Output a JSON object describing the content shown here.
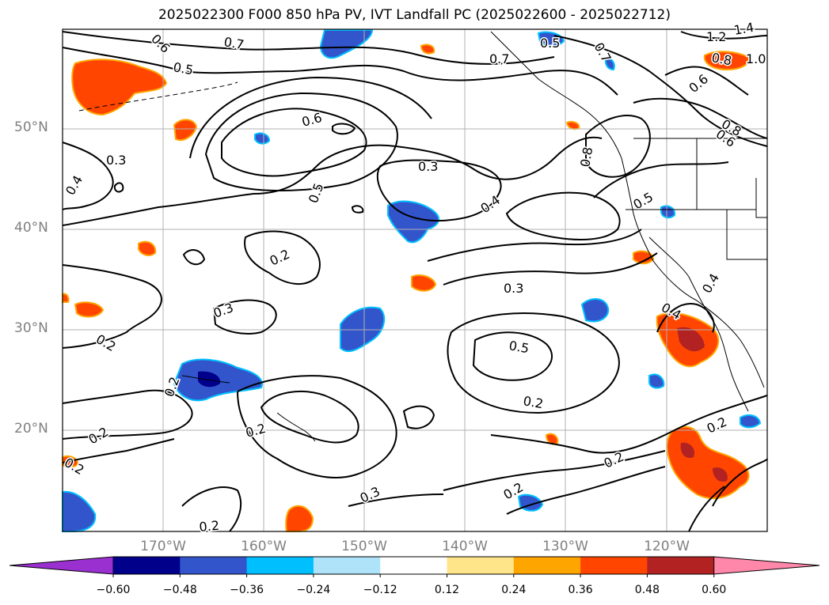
{
  "title": "2025022300 F000 850 hPa PV, IVT Landfall PC (2025022600 - 2025022712)",
  "map": {
    "lat_labels": [
      "50°N",
      "40°N",
      "30°N",
      "20°N"
    ],
    "lon_labels": [
      "170°W",
      "160°W",
      "150°W",
      "140°W",
      "130°W",
      "120°W"
    ]
  },
  "contour_labels": [
    "0.6",
    "0.7",
    "0.5",
    "0.7",
    "0.5",
    "0.7",
    "1.2",
    "1.4",
    "0.8",
    "1.0",
    "0.6",
    "0.8",
    "0.6",
    "0.3",
    "0.4",
    "0.6",
    "0.3",
    "0.5",
    "0.4",
    "0.8",
    "0.5",
    "0.2",
    "0.3",
    "0.3",
    "0.2",
    "0.5",
    "0.4",
    "0.4",
    "0.2",
    "0.2",
    "0.2",
    "0.2",
    "0.3",
    "0.2",
    "0.2",
    "0.2",
    "0.2",
    "0.2"
  ],
  "colorbar": {
    "ticks": [
      "−0.60",
      "−0.48",
      "−0.36",
      "−0.24",
      "−0.12",
      "0.12",
      "0.24",
      "0.36",
      "0.48",
      "0.60"
    ],
    "colors": [
      "#9b30d0",
      "#00008b",
      "#3355cc",
      "#00bfff",
      "#aee3fa",
      "#ffffff",
      "#ffe58a",
      "#ffa500",
      "#ff4500",
      "#b22222",
      "#ff88aa"
    ]
  }
}
